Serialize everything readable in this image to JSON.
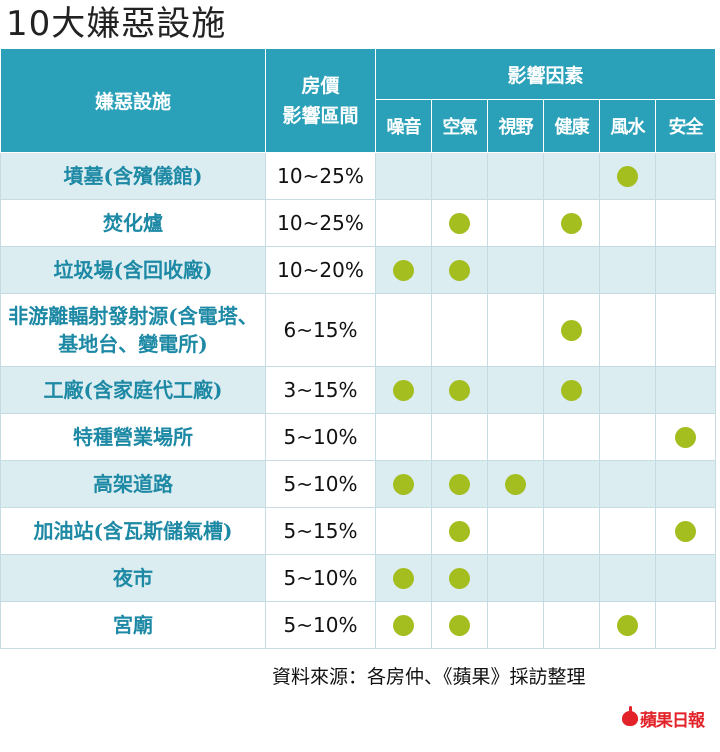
{
  "title": "10大嫌惡設施",
  "headers": {
    "facility": "嫌惡設施",
    "price_range": "房價\n影響區間",
    "factors_group": "影響因素"
  },
  "source_note": "資料來源：各房仲、《蘋果》採訪整理",
  "logo_text": "蘋果日報",
  "colors": {
    "header_bg": "#2aa1b9",
    "dot": "#a3be1e",
    "name_text": "#1d89a5",
    "stripe": "#dcedf1"
  },
  "chart_data": {
    "type": "table",
    "factors": [
      "噪音",
      "空氣",
      "視野",
      "健康",
      "風水",
      "安全"
    ],
    "rows": [
      {
        "name": "墳墓(含殯儀館)",
        "range": "10~25%",
        "marks": [
          false,
          false,
          false,
          false,
          true,
          false
        ]
      },
      {
        "name": "焚化爐",
        "range": "10~25%",
        "marks": [
          false,
          true,
          false,
          true,
          false,
          false
        ]
      },
      {
        "name": "垃圾場(含回收廠)",
        "range": "10~20%",
        "marks": [
          true,
          true,
          false,
          false,
          false,
          false
        ]
      },
      {
        "name": "非游離輻射發射源(含電塔、基地台、變電所)",
        "range": "6~15%",
        "marks": [
          false,
          false,
          false,
          true,
          false,
          false
        ]
      },
      {
        "name": "工廠(含家庭代工廠)",
        "range": "3~15%",
        "marks": [
          true,
          true,
          false,
          true,
          false,
          false
        ]
      },
      {
        "name": "特種營業場所",
        "range": "5~10%",
        "marks": [
          false,
          false,
          false,
          false,
          false,
          true
        ]
      },
      {
        "name": "高架道路",
        "range": "5~10%",
        "marks": [
          true,
          true,
          true,
          false,
          false,
          false
        ]
      },
      {
        "name": "加油站(含瓦斯儲氣槽)",
        "range": "5~15%",
        "marks": [
          false,
          true,
          false,
          false,
          false,
          true
        ]
      },
      {
        "name": "夜市",
        "range": "5~10%",
        "marks": [
          true,
          true,
          false,
          false,
          false,
          false
        ]
      },
      {
        "name": "宮廟",
        "range": "5~10%",
        "marks": [
          true,
          true,
          false,
          false,
          true,
          false
        ]
      }
    ]
  }
}
